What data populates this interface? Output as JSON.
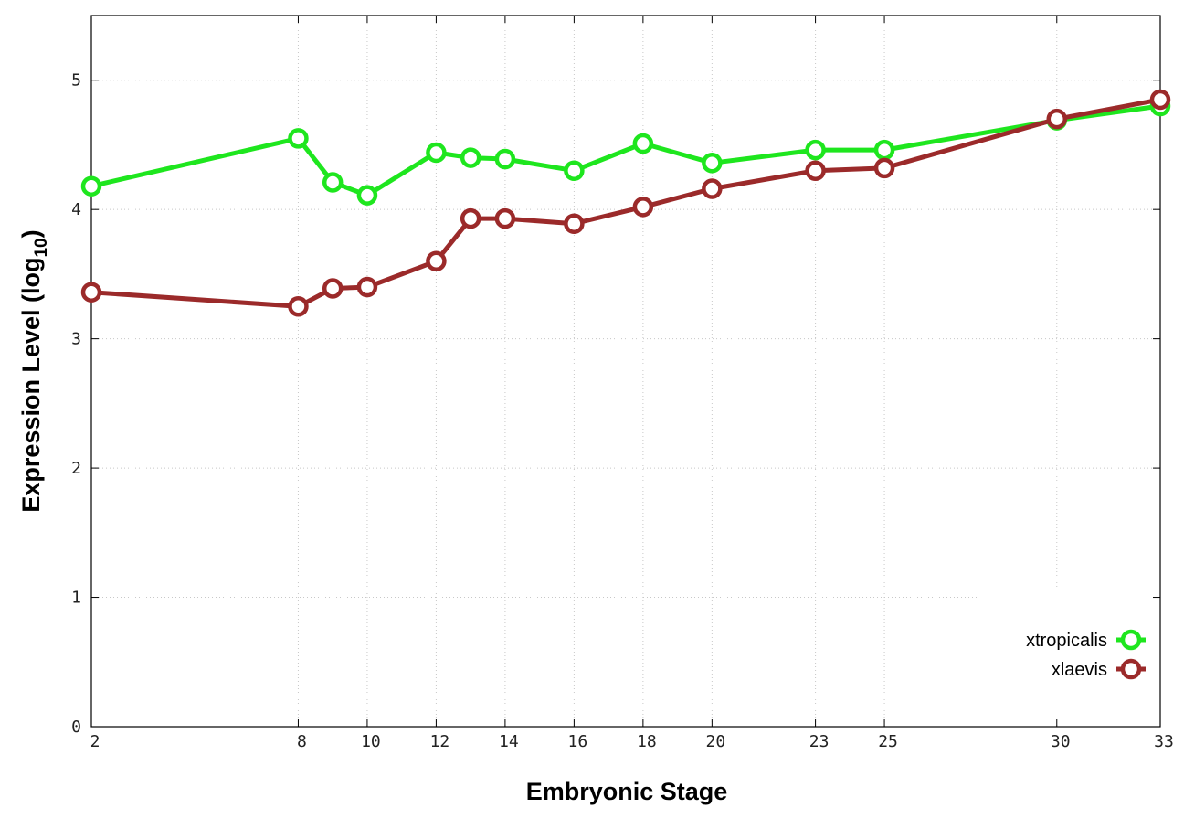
{
  "chart_data": {
    "type": "line",
    "xlabel": "Embryonic Stage",
    "ylabel_main": "Expression Level (log",
    "ylabel_sub": "10",
    "ylabel_close": ")",
    "x_ticks": [
      2,
      8,
      10,
      12,
      14,
      16,
      18,
      20,
      23,
      25,
      30,
      33
    ],
    "x_tick_labels": [
      "2",
      "8",
      "10",
      "12",
      "14",
      "16",
      "18",
      "20",
      "23",
      "25",
      "30",
      "33"
    ],
    "y_ticks": [
      0,
      1,
      2,
      3,
      4,
      5
    ],
    "y_tick_labels": [
      "0",
      "1",
      "2",
      "3",
      "4",
      "5"
    ],
    "ylim": [
      0,
      5.5
    ],
    "grid": true,
    "legend_position": "bottom-right",
    "series": [
      {
        "name": "xtropicalis",
        "color": "#1ee61e",
        "x": [
          2,
          8,
          9,
          10,
          12,
          13,
          14,
          16,
          18,
          20,
          23,
          25,
          30,
          33
        ],
        "y": [
          4.18,
          4.55,
          4.21,
          4.11,
          4.44,
          4.4,
          4.39,
          4.3,
          4.51,
          4.36,
          4.46,
          4.46,
          4.69,
          4.8
        ]
      },
      {
        "name": "xlaevis",
        "color": "#9b2a2a",
        "x": [
          2,
          8,
          9,
          10,
          12,
          13,
          14,
          16,
          18,
          20,
          23,
          25,
          30,
          33
        ],
        "y": [
          3.36,
          3.25,
          3.39,
          3.4,
          3.6,
          3.93,
          3.93,
          3.89,
          4.02,
          4.16,
          4.3,
          4.32,
          4.7,
          4.85
        ]
      }
    ]
  }
}
